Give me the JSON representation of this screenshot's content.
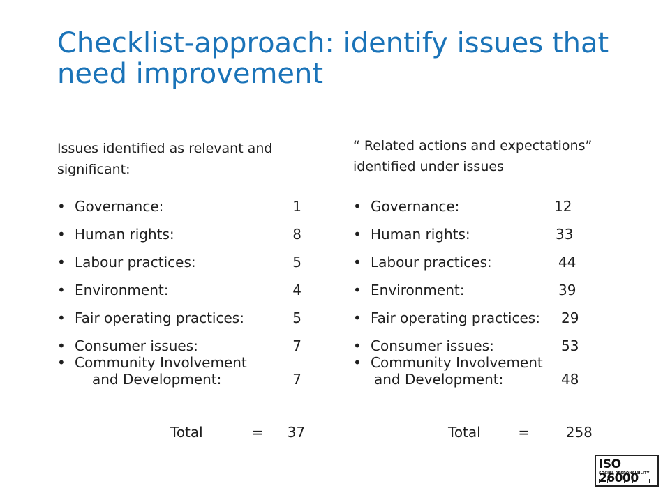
{
  "title": "Checklist-approach: identify issues that need improvement",
  "left": {
    "heading": "Issues identified as relevant and significant:",
    "items": [
      {
        "label": "Governance:",
        "value": "1"
      },
      {
        "label": "Human rights:",
        "value": "8"
      },
      {
        "label": "Labour practices:",
        "value": "5"
      },
      {
        "label": "Environment:",
        "value": "4"
      },
      {
        "label": "Fair operating practices:",
        "value": "5"
      },
      {
        "label": "Consumer issues:",
        "value": "7"
      },
      {
        "label": "Community Involvement",
        "label_cont": "and Development:",
        "value": "7"
      }
    ],
    "total_label": "Total",
    "total_eq": "=",
    "total_value": "37"
  },
  "right": {
    "heading": "“ Related actions and expectations” identified under issues",
    "items": [
      {
        "label": "Governance:",
        "value": "12"
      },
      {
        "label": "Human rights:",
        "value": "33"
      },
      {
        "label": "Labour practices:",
        "value": "44"
      },
      {
        "label": "Environment:",
        "value": "39"
      },
      {
        "label": "Fair operating practices:",
        "value": "29"
      },
      {
        "label": "Consumer issues:",
        "value": "53"
      },
      {
        "label": "Community Involvement",
        "label_cont": "and Development:",
        "value": "48"
      }
    ],
    "total_label": "Total",
    "total_eq": "=",
    "total_value": "258"
  },
  "bullet": "•",
  "logo": {
    "main": "ISO 26000",
    "sub": "SOCIAL RESPONSIBILITY"
  }
}
